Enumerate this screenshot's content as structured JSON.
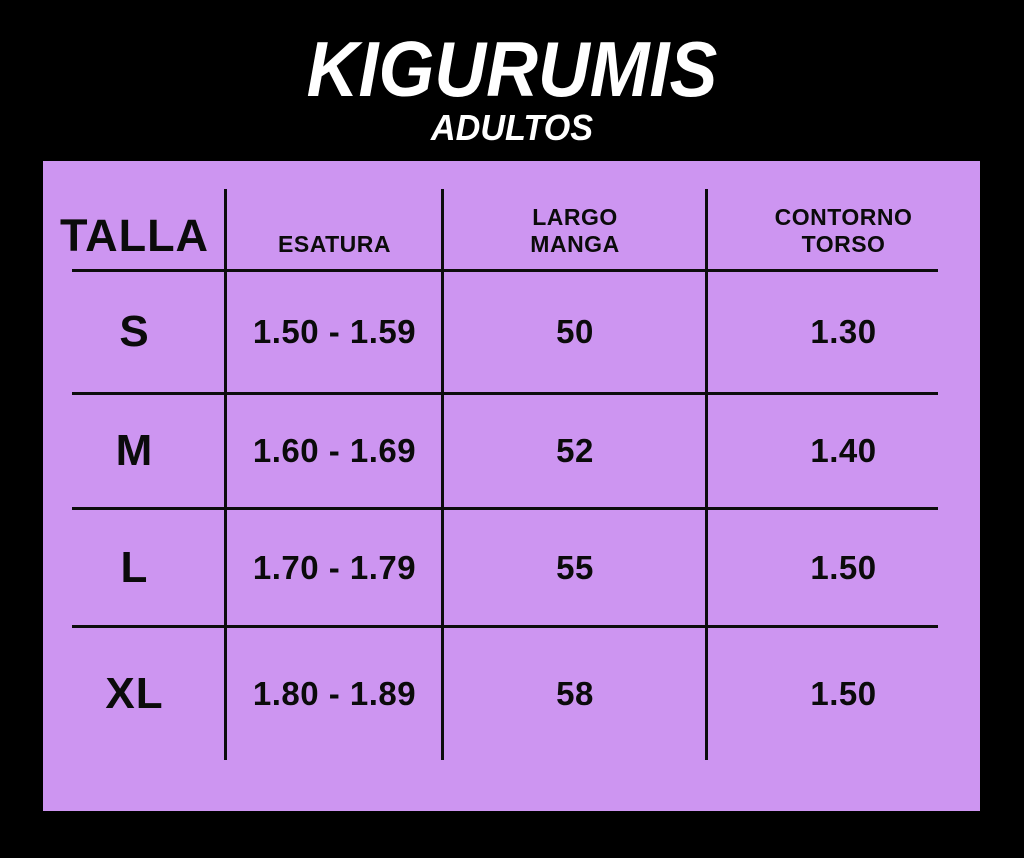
{
  "header": {
    "title": "KIGURUMIS",
    "subtitle": "ADULTOS"
  },
  "colors": {
    "background": "#000000",
    "panel": "#CD95F1",
    "grid_line": "#0D0D0D",
    "title_text": "#FFFFFF",
    "table_text": "#0B0B0B"
  },
  "chart_data": {
    "type": "table",
    "title": "KIGURUMIS ADULTOS",
    "columns": [
      "TALLA",
      "ESATURA",
      "LARGO MANGA",
      "CONTORNO TORSO"
    ],
    "columns_display": [
      [
        "TALLA"
      ],
      [
        "ESATURA"
      ],
      [
        "LARGO",
        "MANGA"
      ],
      [
        "CONTORNO",
        "TORSO"
      ]
    ],
    "rows": [
      {
        "cells": [
          "S",
          "1.50 - 1.59",
          "50",
          "1.30"
        ]
      },
      {
        "cells": [
          "M",
          "1.60 - 1.69",
          "52",
          "1.40"
        ]
      },
      {
        "cells": [
          "L",
          "1.70 - 1.79",
          "55",
          "1.50"
        ]
      },
      {
        "cells": [
          "XL",
          "1.80 - 1.89",
          "58",
          "1.50"
        ]
      }
    ]
  }
}
